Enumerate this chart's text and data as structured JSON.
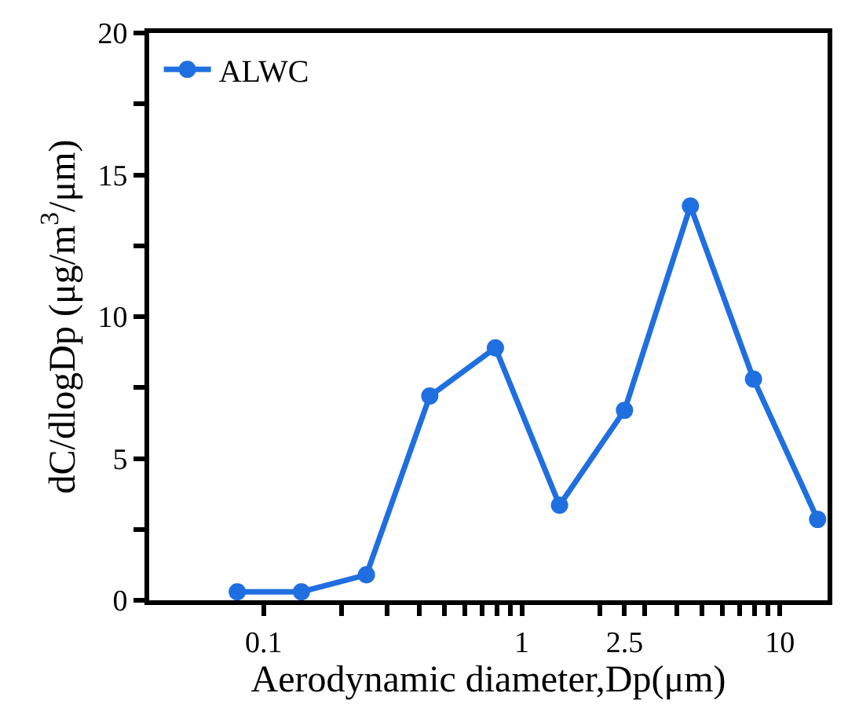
{
  "chart_data": {
    "type": "line",
    "xlabel": "Aerodynamic diameter,Dp(μm)",
    "ylabel": "dC/dlogDp (μg/m$^{3}$/μm)",
    "x": [
      0.079,
      0.14,
      0.25,
      0.44,
      0.79,
      1.4,
      2.5,
      4.5,
      7.9,
      14
    ],
    "series": [
      {
        "name": "ALWC",
        "color": "#1f6fe0",
        "values": [
          0.3,
          0.3,
          0.9,
          7.2,
          8.9,
          3.35,
          6.7,
          13.9,
          7.8,
          2.85
        ]
      }
    ],
    "log": "x",
    "xlim": [
      0.036,
      15.3
    ],
    "ylim": [
      0,
      20
    ],
    "xticks": [
      0.1,
      {
        "value": 0.2,
        "label": null
      },
      {
        "value": 0.3,
        "label": null
      },
      {
        "value": 0.4,
        "label": null
      },
      {
        "value": 0.5,
        "label": null
      },
      {
        "value": 0.6,
        "label": null
      },
      {
        "value": 0.7,
        "label": null
      },
      {
        "value": 0.8,
        "label": null
      },
      {
        "value": 0.9,
        "label": null
      },
      1,
      {
        "value": 2,
        "label": null
      },
      2.5,
      {
        "value": 3,
        "label": null
      },
      {
        "value": 4,
        "label": null
      },
      {
        "value": 5,
        "label": null
      },
      {
        "value": 6,
        "label": null
      },
      {
        "value": 7,
        "label": null
      },
      {
        "value": 8,
        "label": null
      },
      {
        "value": 9,
        "label": null
      },
      10
    ],
    "yticks": [
      0,
      {
        "value": 2.5,
        "label": null
      },
      5,
      {
        "value": 7.5,
        "label": null
      },
      10,
      {
        "value": 12.5,
        "label": null
      },
      15,
      {
        "value": 17.5,
        "label": null
      },
      20
    ],
    "marker": "circle",
    "line_style": "solid",
    "legend": "top left"
  }
}
